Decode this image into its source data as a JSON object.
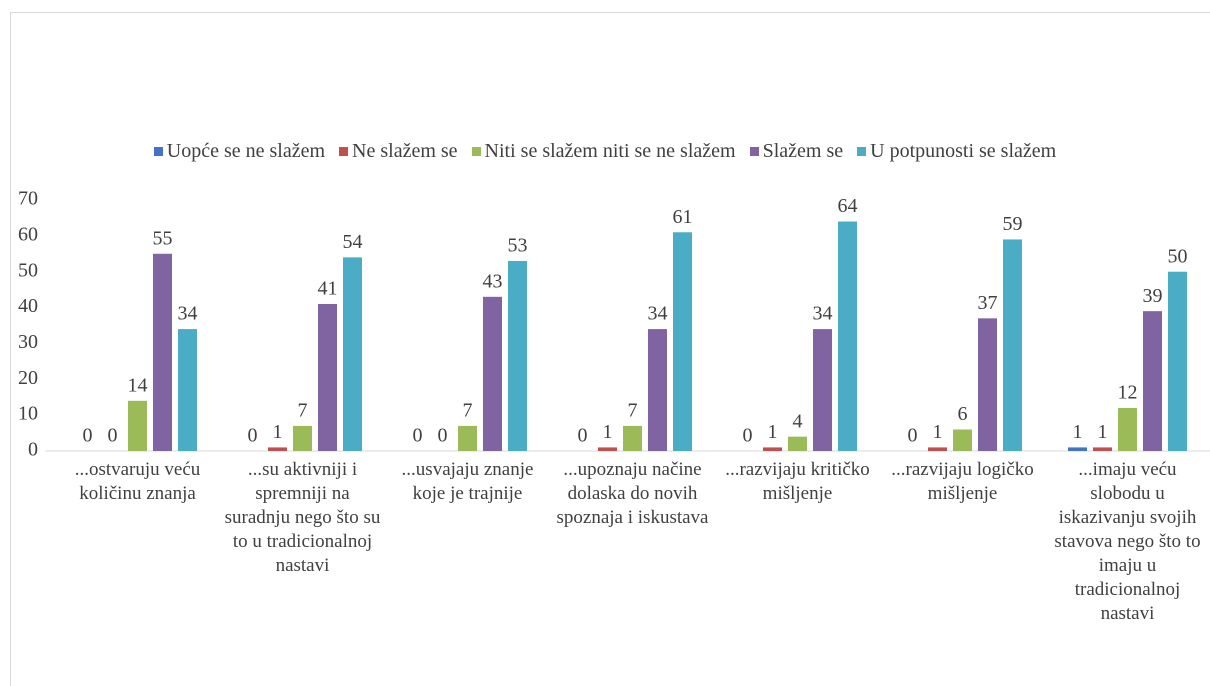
{
  "chart_data": {
    "type": "bar",
    "categories": [
      "...ostvaruju veću količinu znanja",
      "...su aktivniji i spremniji na suradnju nego što su to u tradicionalnoj nastavi",
      "...usvajaju znanje koje je trajnije",
      "...upoznaju načine dolaska do novih spoznaja i iskustava",
      "...razvijaju kritičko mišljenje",
      "...razvijaju logičko mišljenje",
      "...imaju veću slobodu u iskazivanju svojih stavova nego što to imaju u tradicionalnoj nastavi"
    ],
    "series": [
      {
        "name": "Uopće se ne slažem",
        "color": "#4472c4",
        "values": [
          0,
          0,
          0,
          0,
          0,
          0,
          1
        ]
      },
      {
        "name": "Ne slažem se",
        "color": "#c0504d",
        "values": [
          0,
          1,
          0,
          1,
          1,
          1,
          1
        ]
      },
      {
        "name": "Niti se slažem niti se ne slažem",
        "color": "#9bbb59",
        "values": [
          14,
          7,
          7,
          7,
          4,
          6,
          12
        ]
      },
      {
        "name": "Slažem se",
        "color": "#8064a2",
        "values": [
          55,
          41,
          43,
          34,
          34,
          37,
          39
        ]
      },
      {
        "name": "U potpunosti se slažem",
        "color": "#4bacc6",
        "values": [
          34,
          54,
          53,
          61,
          64,
          59,
          50
        ]
      }
    ],
    "ylim": [
      0,
      70
    ],
    "yticks": [
      0,
      10,
      20,
      30,
      40,
      50,
      60,
      70
    ],
    "legend": "top",
    "grid": false
  }
}
